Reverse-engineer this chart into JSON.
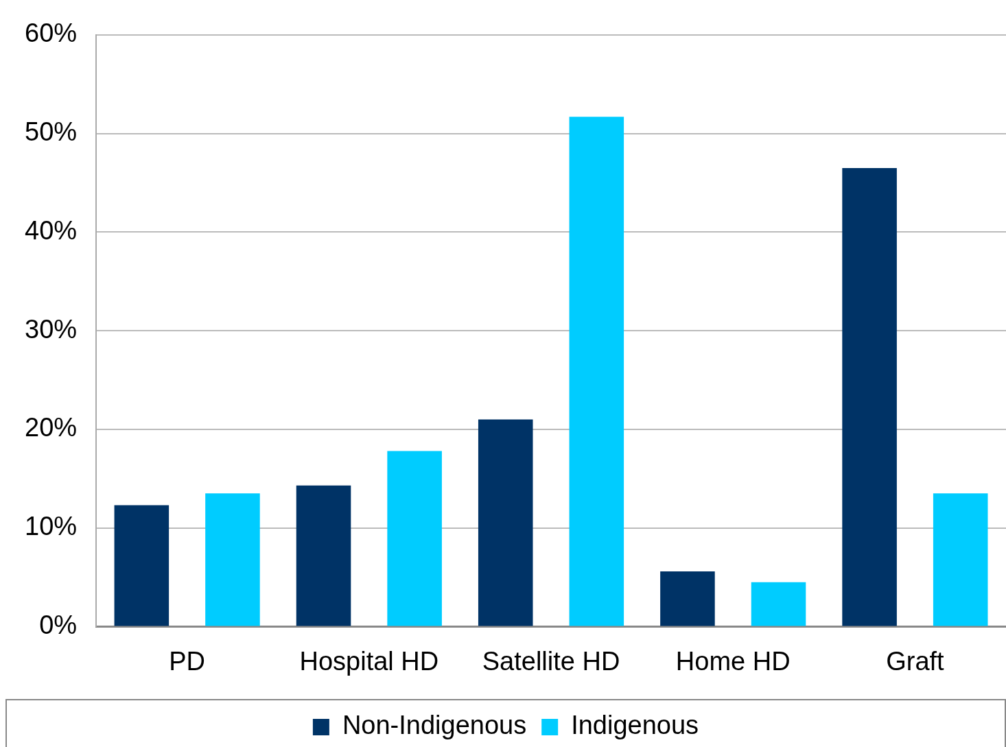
{
  "chart_data": {
    "type": "bar",
    "categories": [
      "PD",
      "Hospital HD",
      "Satellite HD",
      "Home HD",
      "Graft"
    ],
    "series": [
      {
        "name": "Non-Indigenous",
        "color": "#003366",
        "values": [
          12.3,
          14.3,
          21.0,
          5.6,
          46.5
        ]
      },
      {
        "name": "Indigenous",
        "color": "#00ccff",
        "values": [
          13.5,
          17.8,
          51.7,
          4.5,
          13.5
        ]
      }
    ],
    "ylim": [
      0,
      60
    ],
    "yticks": [
      {
        "value": 0,
        "label": "0%"
      },
      {
        "value": 10,
        "label": "10%"
      },
      {
        "value": 20,
        "label": "20%"
      },
      {
        "value": 30,
        "label": "30%"
      },
      {
        "value": 40,
        "label": "40%"
      },
      {
        "value": 50,
        "label": "50%"
      },
      {
        "value": 60,
        "label": "60%"
      }
    ],
    "grid": "y",
    "legend": "bottom"
  }
}
